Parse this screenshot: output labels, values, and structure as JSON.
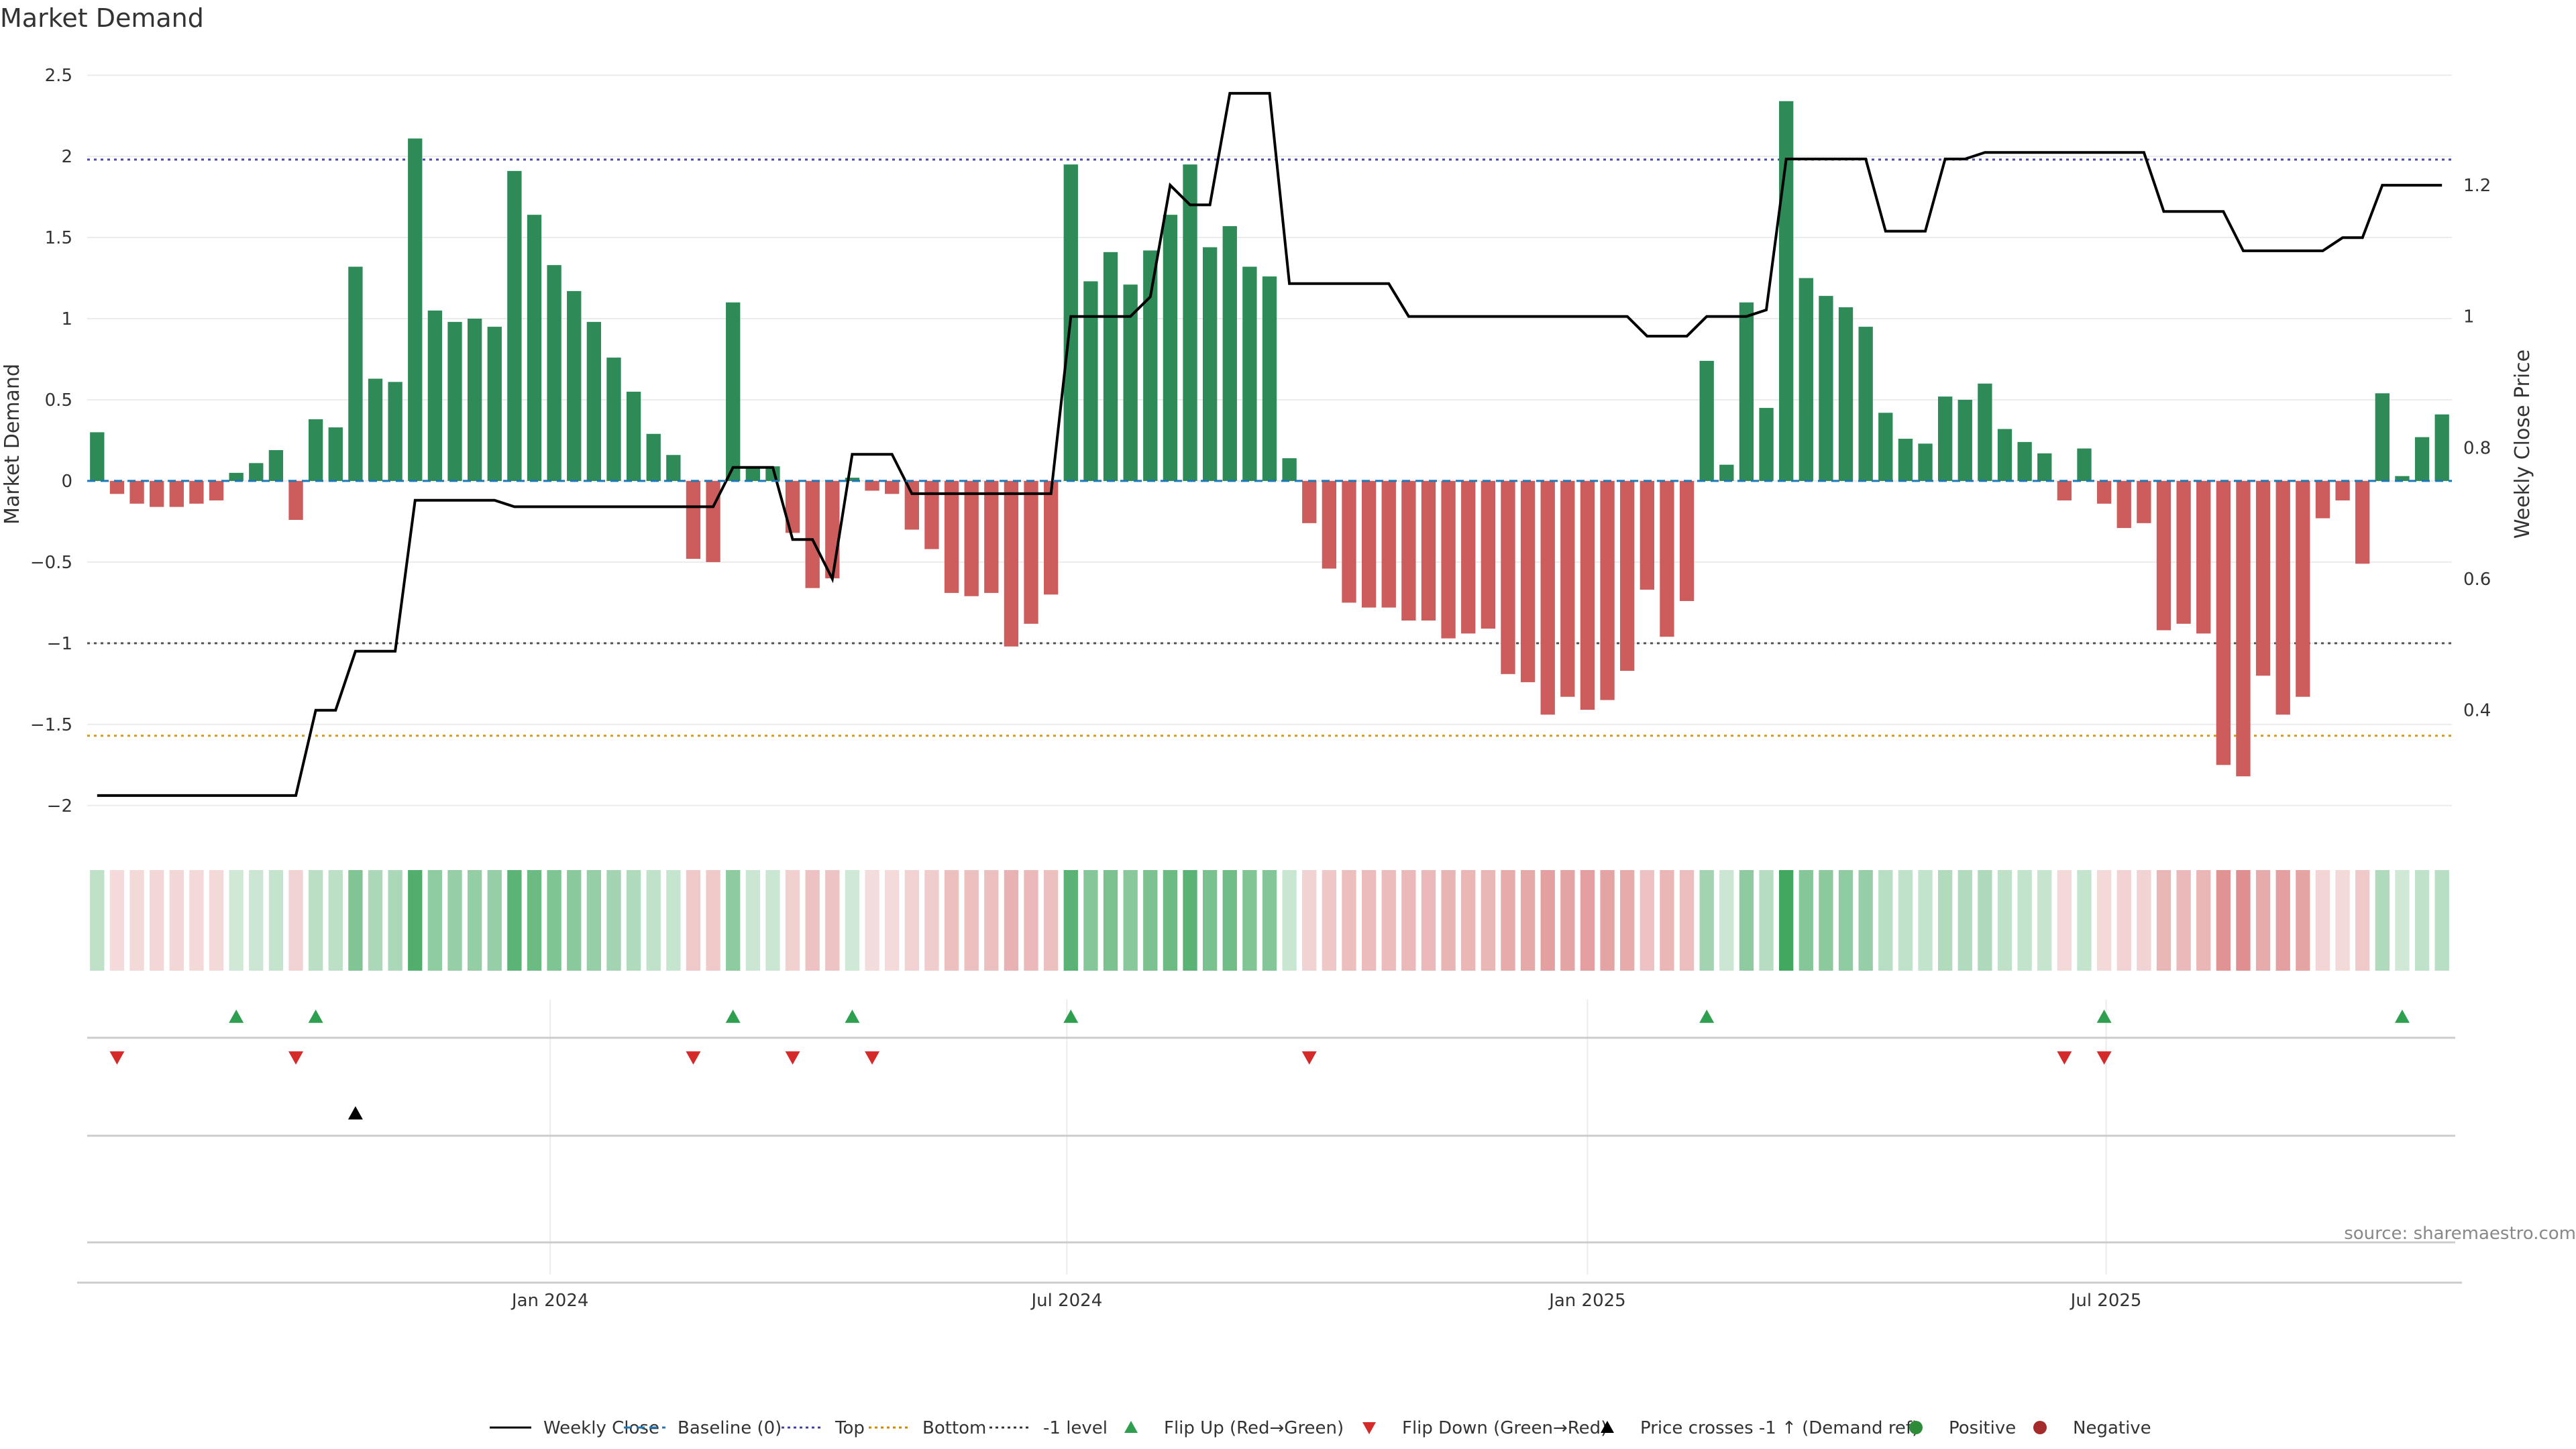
{
  "chart_data": {
    "type": "bar",
    "title": "Market Demand",
    "ylabel": "Market Demand",
    "y2label": "Weekly Close Price",
    "ylim": [
      -2.1,
      2.55
    ],
    "y2lim": [
      0.23,
      1.38
    ],
    "yticks": [
      -2,
      -1.5,
      -1,
      -0.5,
      0,
      0.5,
      1,
      1.5,
      2,
      2.5
    ],
    "y2ticks": [
      0.4,
      0.6,
      0.8,
      1,
      1.2
    ],
    "xticks": [
      {
        "label": "Jan 2024",
        "index": 23.3
      },
      {
        "label": "Jul 2024",
        "index": 49.3
      },
      {
        "label": "Jan 2025",
        "index": 75.5
      },
      {
        "label": "Jul 2025",
        "index": 101.6
      }
    ],
    "reference_lines": {
      "top": 1.98,
      "bottom": -1.57,
      "minus_one": -1.0,
      "baseline": 0
    },
    "demand": [
      0.3,
      -0.08,
      -0.14,
      -0.16,
      -0.16,
      -0.14,
      -0.12,
      0.05,
      0.11,
      0.19,
      -0.24,
      0.38,
      0.33,
      1.32,
      0.63,
      0.61,
      2.11,
      1.05,
      0.98,
      1.0,
      0.95,
      1.91,
      1.64,
      1.33,
      1.17,
      0.98,
      0.76,
      0.55,
      0.29,
      0.16,
      -0.48,
      -0.5,
      1.1,
      0.09,
      0.09,
      -0.32,
      -0.66,
      -0.6,
      0.02,
      -0.06,
      -0.08,
      -0.3,
      -0.42,
      -0.69,
      -0.71,
      -0.69,
      -1.02,
      -0.88,
      -0.7,
      1.95,
      1.23,
      1.41,
      1.21,
      1.42,
      1.64,
      1.95,
      1.44,
      1.57,
      1.32,
      1.26,
      0.14,
      -0.26,
      -0.54,
      -0.75,
      -0.78,
      -0.78,
      -0.86,
      -0.86,
      -0.97,
      -0.94,
      -0.91,
      -1.19,
      -1.24,
      -1.44,
      -1.33,
      -1.41,
      -1.35,
      -1.17,
      -0.67,
      -0.96,
      -0.74,
      0.74,
      0.1,
      1.1,
      0.45,
      2.34,
      1.25,
      1.14,
      1.07,
      0.95,
      0.42,
      0.26,
      0.23,
      0.52,
      0.5,
      0.6,
      0.32,
      0.24,
      0.17,
      -0.12,
      0.2,
      -0.14,
      -0.29,
      -0.26,
      -0.92,
      -0.88,
      -0.94,
      -1.75,
      -1.82,
      -1.2,
      -1.44,
      -1.33,
      -0.23,
      -0.12,
      -0.51,
      0.54,
      0.03,
      0.27,
      0.41
    ],
    "weekly_close": [
      0.27,
      0.27,
      0.27,
      0.27,
      0.27,
      0.27,
      0.27,
      0.27,
      0.27,
      0.27,
      0.27,
      0.4,
      0.4,
      0.49,
      0.49,
      0.49,
      0.72,
      0.72,
      0.72,
      0.72,
      0.72,
      0.71,
      0.71,
      0.71,
      0.71,
      0.71,
      0.71,
      0.71,
      0.71,
      0.71,
      0.71,
      0.71,
      0.77,
      0.77,
      0.77,
      0.66,
      0.66,
      0.6,
      0.79,
      0.79,
      0.79,
      0.73,
      0.73,
      0.73,
      0.73,
      0.73,
      0.73,
      0.73,
      0.73,
      1.0,
      1.0,
      1.0,
      1.0,
      1.03,
      1.2,
      1.17,
      1.17,
      1.34,
      1.34,
      1.34,
      1.05,
      1.05,
      1.05,
      1.05,
      1.05,
      1.05,
      1.0,
      1.0,
      1.0,
      1.0,
      1.0,
      1.0,
      1.0,
      1.0,
      1.0,
      1.0,
      1.0,
      1.0,
      0.97,
      0.97,
      0.97,
      1.0,
      1.0,
      1.0,
      1.01,
      1.24,
      1.24,
      1.24,
      1.24,
      1.24,
      1.13,
      1.13,
      1.13,
      1.24,
      1.24,
      1.25,
      1.25,
      1.25,
      1.25,
      1.25,
      1.25,
      1.25,
      1.25,
      1.25,
      1.16,
      1.16,
      1.16,
      1.16,
      1.1,
      1.1,
      1.1,
      1.1,
      1.1,
      1.12,
      1.12,
      1.2,
      1.2,
      1.2,
      1.2
    ],
    "flip_up_indices": [
      7,
      11,
      32,
      38,
      49,
      81,
      101,
      116
    ],
    "flip_down_indices": [
      1,
      10,
      30,
      35,
      39,
      61,
      99,
      101
    ],
    "price_cross_indices": [
      13
    ],
    "legend": [
      {
        "label": "Weekly Close",
        "marker": "line-solid",
        "color": "#000000"
      },
      {
        "label": "Baseline (0)",
        "marker": "line-dash",
        "color": "#1f77b4"
      },
      {
        "label": "Top",
        "marker": "line-dot",
        "color": "#4040a0"
      },
      {
        "label": "Bottom",
        "marker": "line-dot",
        "color": "#c98a00"
      },
      {
        "label": "-1 level",
        "marker": "line-dot",
        "color": "#333333"
      },
      {
        "label": "Flip Up (Red→Green)",
        "marker": "triangle-up",
        "color": "#2e9e4f"
      },
      {
        "label": "Flip Down (Green→Red)",
        "marker": "triangle-down",
        "color": "#d42a2a"
      },
      {
        "label": "Price crosses -1 ↑ (Demand ref)",
        "marker": "triangle-up",
        "color": "#000000"
      },
      {
        "label": "Positive",
        "marker": "circle",
        "color": "#2e8b3a"
      },
      {
        "label": "Negative",
        "marker": "circle",
        "color": "#a52a2a"
      }
    ],
    "source": "source: sharemaestro.com",
    "colors": {
      "positive": "#2e8b57",
      "negative": "#cd5c5c",
      "close": "#000000"
    }
  }
}
